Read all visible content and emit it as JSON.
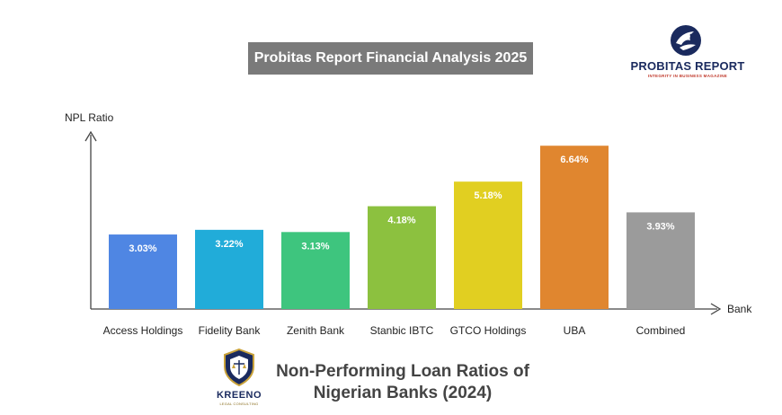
{
  "banner": {
    "text": "Probitas Report Financial Analysis 2025",
    "color": "#7a7a7a"
  },
  "logo": {
    "name": "PROBITAS REPORT",
    "tagline": "INTEGRITY IN BUSINESS MAGAZINE",
    "icon": "eagle-emblem-icon"
  },
  "footer_logo": {
    "name": "KREENO",
    "tagline": "LEGAL CONSULTING",
    "icon": "kreeno-shield-icon"
  },
  "bottom_title": {
    "line1": "Non-Performing Loan Ratios of",
    "line2": "Nigerian Banks (2024)"
  },
  "chart_data": {
    "type": "bar",
    "title": "Non-Performing Loan Ratios of Nigerian Banks (2024)",
    "xlabel": "Bank",
    "ylabel": "NPL Ratio",
    "categories": [
      "Access Holdings",
      "Fidelity Bank",
      "Zenith Bank",
      "Stanbic IBTC",
      "GTCO Holdings",
      "UBA",
      "Combined"
    ],
    "values": [
      3.03,
      3.22,
      3.13,
      4.18,
      5.18,
      6.64,
      3.93
    ],
    "data_labels": [
      "3.03%",
      "3.22%",
      "3.13%",
      "4.18%",
      "5.18%",
      "6.64%",
      "3.93%"
    ],
    "colors": [
      "#4f86e3",
      "#21acd9",
      "#3ec57e",
      "#8cc13f",
      "#e1cf21",
      "#e0862f",
      "#9b9b9b"
    ],
    "ylim": [
      0,
      7.05
    ],
    "grid": false,
    "legend": "none"
  }
}
